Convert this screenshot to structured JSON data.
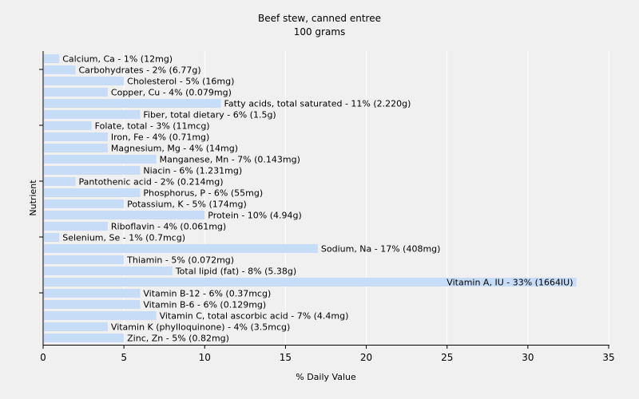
{
  "chart_data": {
    "type": "bar",
    "orientation": "horizontal",
    "title": "Beef stew, canned entree",
    "subtitle": "100 grams",
    "xlabel": "% Daily Value",
    "ylabel": "Nutrient",
    "xlim": [
      0,
      35
    ],
    "xticks": [
      0,
      5,
      10,
      15,
      20,
      25,
      30,
      35
    ],
    "grid": "vertical",
    "bar_color": "#c6dcf7",
    "highlight_color": "#2e3c99",
    "bars": [
      {
        "label": "Calcium, Ca - 1% (12mg)",
        "value": 1
      },
      {
        "label": "Carbohydrates - 2% (6.77g)",
        "value": 2
      },
      {
        "label": "Cholesterol - 5% (16mg)",
        "value": 5
      },
      {
        "label": "Copper, Cu - 4% (0.079mg)",
        "value": 4
      },
      {
        "label": "Fatty acids, total saturated - 11% (2.220g)",
        "value": 11
      },
      {
        "label": "Fiber, total dietary - 6% (1.5g)",
        "value": 6
      },
      {
        "label": "Folate, total - 3% (11mcg)",
        "value": 3
      },
      {
        "label": "Iron, Fe - 4% (0.71mg)",
        "value": 4
      },
      {
        "label": "Magnesium, Mg - 4% (14mg)",
        "value": 4
      },
      {
        "label": "Manganese, Mn - 7% (0.143mg)",
        "value": 7
      },
      {
        "label": "Niacin - 6% (1.231mg)",
        "value": 6
      },
      {
        "label": "Pantothenic acid - 2% (0.214mg)",
        "value": 2
      },
      {
        "label": "Phosphorus, P - 6% (55mg)",
        "value": 6
      },
      {
        "label": "Potassium, K - 5% (174mg)",
        "value": 5
      },
      {
        "label": "Protein - 10% (4.94g)",
        "value": 10
      },
      {
        "label": "Riboflavin - 4% (0.061mg)",
        "value": 4
      },
      {
        "label": "Selenium, Se - 1% (0.7mcg)",
        "value": 1
      },
      {
        "label": "Sodium, Na - 17% (408mg)",
        "value": 17
      },
      {
        "label": "Thiamin - 5% (0.072mg)",
        "value": 5
      },
      {
        "label": "Total lipid (fat) - 8% (5.38g)",
        "value": 8
      },
      {
        "label": "Vitamin A, IU - 33% (1664IU)",
        "value": 33
      },
      {
        "label": "Vitamin B-12 - 6% (0.37mcg)",
        "value": 6
      },
      {
        "label": "Vitamin B-6 - 6% (0.129mg)",
        "value": 6
      },
      {
        "label": "Vitamin C, total ascorbic acid - 7% (4.4mg)",
        "value": 7
      },
      {
        "label": "Vitamin K (phylloquinone) - 4% (3.5mcg)",
        "value": 4
      },
      {
        "label": "Zinc, Zn - 5% (0.82mg)",
        "value": 5
      }
    ]
  }
}
